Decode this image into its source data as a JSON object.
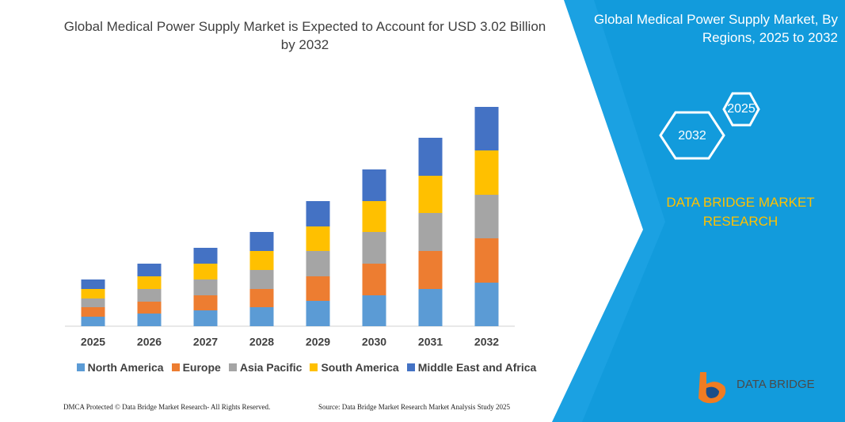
{
  "chart_data": {
    "type": "stacked_bar",
    "title": "Global Medical Power Supply Market is Expected to Account for USD 3.02 Billion by 2032",
    "categories": [
      "2025",
      "2026",
      "2027",
      "2028",
      "2029",
      "2030",
      "2031",
      "2032"
    ],
    "series": [
      {
        "name": "North America",
        "color": "#5b9bd5",
        "values": [
          12,
          16,
          20,
          24,
          32,
          39,
          47,
          55
        ]
      },
      {
        "name": "Europe",
        "color": "#ed7d31",
        "values": [
          12,
          15,
          19,
          23,
          31,
          40,
          48,
          56
        ]
      },
      {
        "name": "Asia Pacific",
        "color": "#a5a5a5",
        "values": [
          11,
          16,
          20,
          24,
          32,
          40,
          48,
          55
        ]
      },
      {
        "name": "South America",
        "color": "#ffc000",
        "values": [
          12,
          16,
          20,
          24,
          31,
          39,
          47,
          56
        ]
      },
      {
        "name": "Middle East and Africa",
        "color": "#4472c4",
        "values": [
          12,
          16,
          20,
          24,
          32,
          40,
          48,
          55
        ]
      }
    ],
    "ylim": [
      0,
      290
    ]
  },
  "panel": {
    "title": "Global Medical Power Supply Market, By Regions, 2025 to 2032",
    "hex_labels": [
      "2032",
      "2025"
    ],
    "brand": "DATA BRIDGE MARKET RESEARCH"
  },
  "footer": {
    "left": "DMCA Protected © Data Bridge Market Research- All Rights Reserved.",
    "right": "Source: Data Bridge Market Research Market Analysis Study 2025"
  },
  "logo": "DATA BRIDGE"
}
